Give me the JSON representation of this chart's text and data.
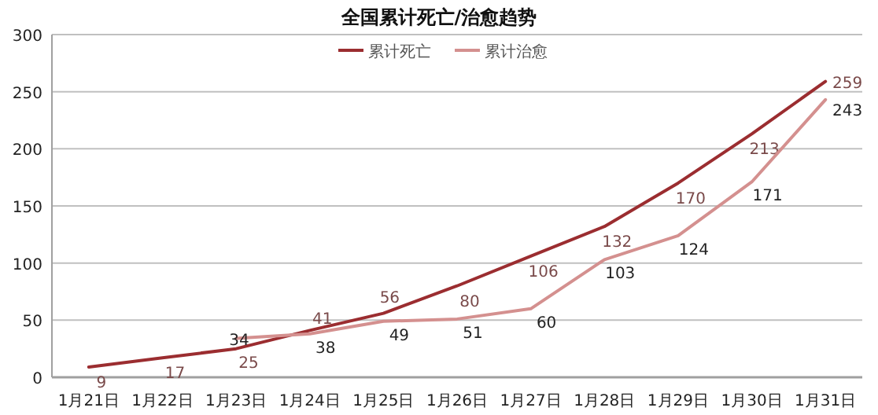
{
  "chart_data": {
    "type": "line",
    "title": "全国累计死亡/治愈趋势",
    "categories": [
      "1月21日",
      "1月22日",
      "1月23日",
      "1月24日",
      "1月25日",
      "1月26日",
      "1月27日",
      "1月28日",
      "1月29日",
      "1月30日",
      "1月31日"
    ],
    "series": [
      {
        "name": "累计死亡",
        "color": "#9b2d30",
        "values": [
          9,
          17,
          25,
          41,
          56,
          80,
          106,
          132,
          170,
          213,
          259
        ]
      },
      {
        "name": "累计治愈",
        "color": "#d4908f",
        "values": [
          null,
          null,
          34,
          38,
          49,
          51,
          60,
          103,
          124,
          171,
          243
        ]
      }
    ],
    "ylim": [
      0,
      300
    ],
    "yticks": [
      0,
      50,
      100,
      150,
      200,
      250,
      300
    ],
    "grid": "y",
    "legend": "top",
    "data_labels": true,
    "marker": "none",
    "line_style": "solid"
  }
}
